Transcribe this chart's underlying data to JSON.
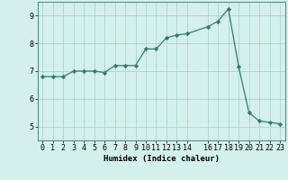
{
  "x": [
    0,
    1,
    2,
    3,
    4,
    5,
    6,
    7,
    8,
    9,
    10,
    11,
    12,
    13,
    14,
    16,
    17,
    18,
    19,
    20,
    21,
    22,
    23
  ],
  "y": [
    6.8,
    6.8,
    6.8,
    7.0,
    7.0,
    7.0,
    6.95,
    7.2,
    7.2,
    7.2,
    7.8,
    7.8,
    8.2,
    8.3,
    8.35,
    8.6,
    8.8,
    9.25,
    7.15,
    5.5,
    5.2,
    5.15,
    5.1
  ],
  "line_color": "#2d7d6e",
  "marker": "D",
  "marker_size": 2.2,
  "bg_color": "#d4f0ec",
  "grid_color": "#aed4ce",
  "xlabel": "Humidex (Indice chaleur)",
  "xlim": [
    -0.5,
    23.5
  ],
  "ylim": [
    4.5,
    9.5
  ],
  "xticks": [
    0,
    1,
    2,
    3,
    4,
    5,
    6,
    7,
    8,
    9,
    10,
    11,
    12,
    13,
    14,
    16,
    17,
    18,
    19,
    20,
    21,
    22,
    23
  ],
  "yticks": [
    5,
    6,
    7,
    8,
    9
  ],
  "xlabel_fontsize": 6.5,
  "tick_fontsize": 6.0,
  "linewidth": 0.9
}
